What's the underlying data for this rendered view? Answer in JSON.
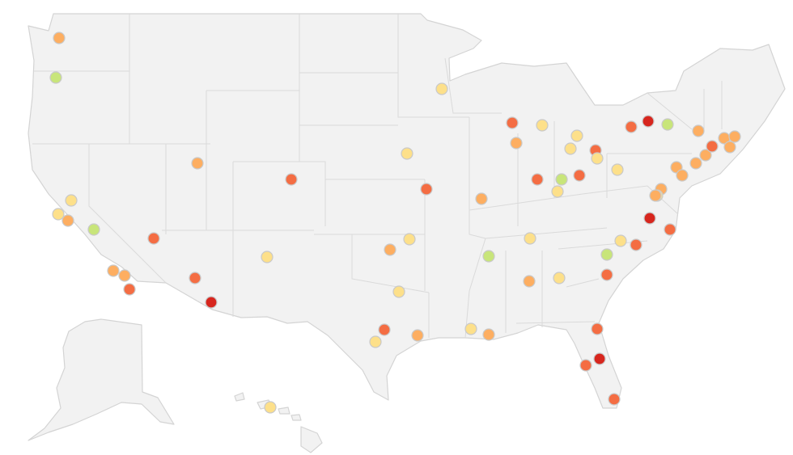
{
  "map": {
    "region": "United States",
    "scale": {
      "level_1": "#c8e57a",
      "level_2": "#fde08a",
      "level_3": "#fdae61",
      "level_4": "#f46d43",
      "level_5": "#d7261e"
    },
    "markers": [
      {
        "id": "seattle",
        "level": 3
      },
      {
        "id": "portland",
        "level": 1
      },
      {
        "id": "sacramento",
        "level": 2
      },
      {
        "id": "san-francisco",
        "level": 2
      },
      {
        "id": "san-jose",
        "level": 3
      },
      {
        "id": "fresno",
        "level": 1
      },
      {
        "id": "los-angeles",
        "level": 3
      },
      {
        "id": "riverside",
        "level": 3
      },
      {
        "id": "san-diego",
        "level": 4
      },
      {
        "id": "las-vegas",
        "level": 4
      },
      {
        "id": "salt-lake-city",
        "level": 3
      },
      {
        "id": "phoenix",
        "level": 4
      },
      {
        "id": "tucson",
        "level": 5
      },
      {
        "id": "denver",
        "level": 4
      },
      {
        "id": "albuquerque",
        "level": 2
      },
      {
        "id": "minneapolis",
        "level": 2
      },
      {
        "id": "omaha",
        "level": 2
      },
      {
        "id": "kansas-city",
        "level": 4
      },
      {
        "id": "oklahoma-city",
        "level": 3
      },
      {
        "id": "tulsa",
        "level": 2
      },
      {
        "id": "dallas",
        "level": 2
      },
      {
        "id": "austin",
        "level": 4
      },
      {
        "id": "san-antonio",
        "level": 2
      },
      {
        "id": "houston",
        "level": 3
      },
      {
        "id": "new-orleans",
        "level": 2
      },
      {
        "id": "baton-rouge",
        "level": 3
      },
      {
        "id": "st-louis",
        "level": 3
      },
      {
        "id": "chicago",
        "level": 4
      },
      {
        "id": "milwaukee",
        "level": 3
      },
      {
        "id": "grand-rapids",
        "level": 2
      },
      {
        "id": "detroit",
        "level": 2
      },
      {
        "id": "toledo",
        "level": 2
      },
      {
        "id": "cleveland",
        "level": 4
      },
      {
        "id": "akron",
        "level": 2
      },
      {
        "id": "indianapolis",
        "level": 4
      },
      {
        "id": "dayton",
        "level": 1
      },
      {
        "id": "cincinnati",
        "level": 2
      },
      {
        "id": "columbus",
        "level": 4
      },
      {
        "id": "pittsburgh",
        "level": 2
      },
      {
        "id": "buffalo",
        "level": 4
      },
      {
        "id": "rochester",
        "level": 5
      },
      {
        "id": "syracuse",
        "level": 1
      },
      {
        "id": "albany",
        "level": 3
      },
      {
        "id": "hartford",
        "level": 3
      },
      {
        "id": "worcester",
        "level": 3
      },
      {
        "id": "boston",
        "level": 3
      },
      {
        "id": "providence",
        "level": 3
      },
      {
        "id": "new-haven",
        "level": 4
      },
      {
        "id": "new-york",
        "level": 3
      },
      {
        "id": "newark",
        "level": 3
      },
      {
        "id": "allentown",
        "level": 3
      },
      {
        "id": "philadelphia",
        "level": 3
      },
      {
        "id": "wilmington",
        "level": 2
      },
      {
        "id": "baltimore",
        "level": 3
      },
      {
        "id": "richmond",
        "level": 5
      },
      {
        "id": "virginia-beach",
        "level": 4
      },
      {
        "id": "nashville",
        "level": 2
      },
      {
        "id": "memphis",
        "level": 1
      },
      {
        "id": "greensboro",
        "level": 2
      },
      {
        "id": "raleigh",
        "level": 4
      },
      {
        "id": "charlotte",
        "level": 1
      },
      {
        "id": "columbia",
        "level": 4
      },
      {
        "id": "atlanta",
        "level": 2
      },
      {
        "id": "birmingham",
        "level": 3
      },
      {
        "id": "jacksonville",
        "level": 4
      },
      {
        "id": "orlando",
        "level": 5
      },
      {
        "id": "tampa",
        "level": 4
      },
      {
        "id": "miami",
        "level": 4
      },
      {
        "id": "honolulu",
        "level": 2
      }
    ]
  }
}
